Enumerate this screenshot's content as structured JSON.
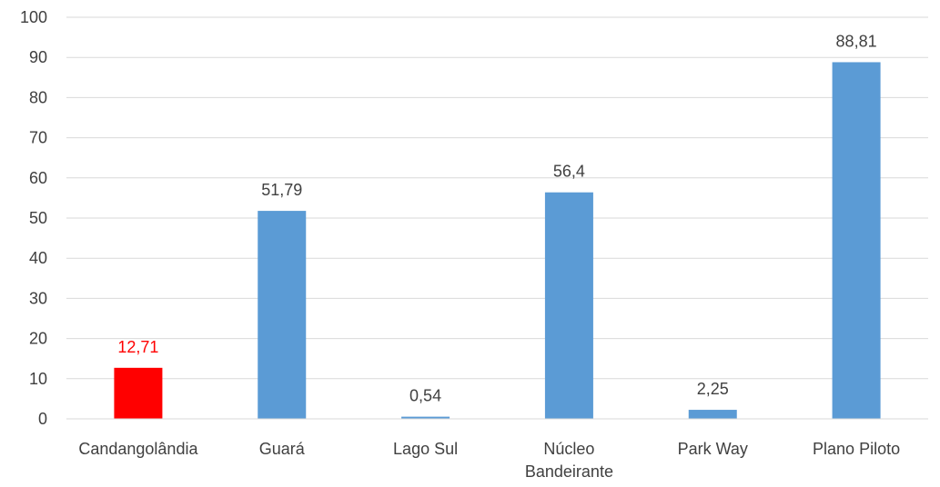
{
  "chart_data": {
    "type": "bar",
    "title": "",
    "xlabel": "",
    "ylabel": "",
    "ylim": [
      0,
      100
    ],
    "yticks": [
      0,
      10,
      20,
      30,
      40,
      50,
      60,
      70,
      80,
      90,
      100
    ],
    "ytick_labels": [
      "0",
      "10",
      "20",
      "30",
      "40",
      "50",
      "60",
      "70",
      "80",
      "90",
      "100"
    ],
    "grid": true,
    "legend": "none",
    "categories": [
      [
        "Candangolândia"
      ],
      [
        "Guará"
      ],
      [
        "Lago Sul"
      ],
      [
        "Núcleo",
        "Bandeirante"
      ],
      [
        "Park Way"
      ],
      [
        "Plano Piloto"
      ]
    ],
    "values": [
      12.71,
      51.79,
      0.54,
      56.4,
      2.25,
      88.81
    ],
    "value_labels": [
      "12,71",
      "51,79",
      "0,54",
      "56,4",
      "2,25",
      "88,81"
    ],
    "bar_colors": [
      "#ff0000",
      "#5b9bd5",
      "#5b9bd5",
      "#5b9bd5",
      "#5b9bd5",
      "#5b9bd5"
    ],
    "label_colors": [
      "#ff0000",
      "#404040",
      "#404040",
      "#404040",
      "#404040",
      "#404040"
    ],
    "text_color": "#404040",
    "grid_color": "#d9d9d9"
  }
}
